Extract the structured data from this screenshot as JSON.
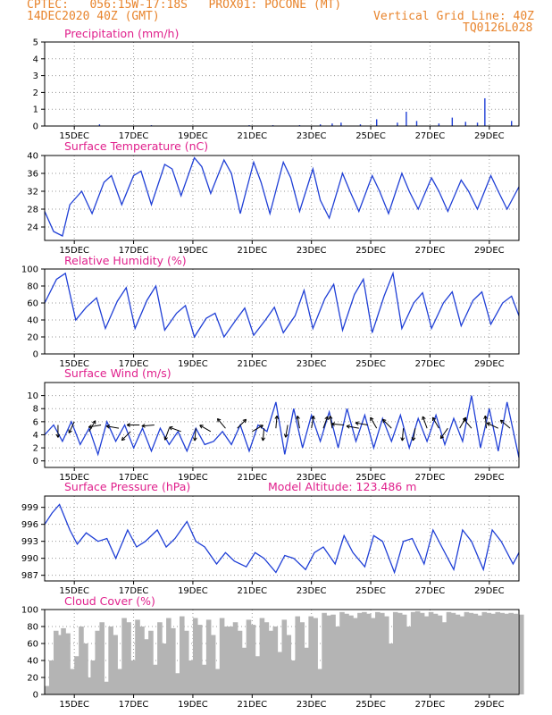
{
  "header": {
    "line1": "CPTEC:   056:15W-17:18S   PROX01: POCONE (MT)",
    "line2": "14DEC2020 40Z (GMT)",
    "right1": "Vertical Grid Line: 40Z",
    "right2": "TQ0126L028"
  },
  "colors": {
    "header": "#e8842c",
    "title": "#e0208c",
    "line": "#1f3fd6",
    "cloud": "#b4b4b4",
    "arrow": "#000000"
  },
  "chart_data": [
    {
      "type": "bar",
      "title": "Precipitation (mm/h)",
      "ylim": [
        0,
        5
      ],
      "yticks": [
        0,
        1,
        2,
        3,
        4,
        5
      ],
      "xticks": [
        "15DEC",
        "17DEC",
        "19DEC",
        "21DEC",
        "23DEC",
        "25DEC",
        "27DEC",
        "29DEC"
      ],
      "grid": true,
      "bars": [
        {
          "day": 15.85,
          "value": 0.1
        },
        {
          "day": 17.6,
          "value": 0.05
        },
        {
          "day": 20.9,
          "value": 0.05
        },
        {
          "day": 21.7,
          "value": 0.05
        },
        {
          "day": 22.6,
          "value": 0.05
        },
        {
          "day": 23.3,
          "value": 0.1
        },
        {
          "day": 23.7,
          "value": 0.15
        },
        {
          "day": 24.0,
          "value": 0.2
        },
        {
          "day": 24.65,
          "value": 0.1
        },
        {
          "day": 25.2,
          "value": 0.4
        },
        {
          "day": 25.9,
          "value": 0.2
        },
        {
          "day": 26.2,
          "value": 0.85
        },
        {
          "day": 26.55,
          "value": 0.3
        },
        {
          "day": 27.3,
          "value": 0.15
        },
        {
          "day": 27.75,
          "value": 0.5
        },
        {
          "day": 28.2,
          "value": 0.25
        },
        {
          "day": 28.6,
          "value": 0.2
        },
        {
          "day": 28.85,
          "value": 1.65
        },
        {
          "day": 29.75,
          "value": 0.3
        }
      ]
    },
    {
      "type": "line",
      "title": "Surface Temperature (nC)",
      "ylim": [
        21,
        40
      ],
      "yticks": [
        24,
        28,
        32,
        36,
        40
      ],
      "xticks": [
        "15DEC",
        "17DEC",
        "19DEC",
        "21DEC",
        "23DEC",
        "25DEC",
        "27DEC",
        "29DEC"
      ],
      "grid": true,
      "x": [
        14.0,
        14.3,
        14.6,
        14.85,
        15.25,
        15.6,
        16.0,
        16.25,
        16.6,
        17.0,
        17.25,
        17.6,
        18.05,
        18.3,
        18.6,
        19.05,
        19.3,
        19.6,
        20.05,
        20.3,
        20.6,
        21.05,
        21.3,
        21.6,
        22.05,
        22.3,
        22.6,
        23.05,
        23.3,
        23.6,
        24.05,
        24.3,
        24.6,
        25.05,
        25.3,
        25.6,
        26.05,
        26.3,
        26.6,
        27.05,
        27.3,
        27.6,
        28.05,
        28.3,
        28.6,
        29.05,
        29.3,
        29.6,
        30.0
      ],
      "values": [
        27.5,
        23,
        22,
        29,
        32,
        27,
        34,
        35.5,
        29,
        35.5,
        36.5,
        29,
        38,
        37,
        31,
        39.5,
        37.5,
        31.5,
        39,
        36,
        27,
        38.5,
        34,
        27,
        38.5,
        35,
        27.5,
        37,
        30,
        26,
        36,
        32,
        27.5,
        35.5,
        32,
        27,
        36,
        32,
        28,
        35,
        32,
        27.5,
        34.5,
        32,
        28,
        35.5,
        32,
        28,
        33
      ]
    },
    {
      "type": "line",
      "title": "Relative Humidity (%)",
      "ylim": [
        0,
        100
      ],
      "yticks": [
        0,
        20,
        40,
        60,
        80,
        100
      ],
      "xticks": [
        "15DEC",
        "17DEC",
        "19DEC",
        "21DEC",
        "23DEC",
        "25DEC",
        "27DEC",
        "29DEC"
      ],
      "grid": true,
      "x": [
        14.0,
        14.4,
        14.7,
        15.05,
        15.4,
        15.75,
        16.05,
        16.45,
        16.75,
        17.05,
        17.45,
        17.75,
        18.05,
        18.45,
        18.75,
        19.05,
        19.45,
        19.75,
        20.05,
        20.45,
        20.75,
        21.05,
        21.45,
        21.75,
        22.05,
        22.45,
        22.75,
        23.05,
        23.45,
        23.75,
        24.05,
        24.45,
        24.75,
        25.05,
        25.45,
        25.75,
        26.05,
        26.45,
        26.75,
        27.05,
        27.45,
        27.75,
        28.05,
        28.45,
        28.75,
        29.05,
        29.45,
        29.75,
        30.0
      ],
      "values": [
        60,
        88,
        95,
        40,
        55,
        66,
        30,
        62,
        78,
        30,
        63,
        80,
        28,
        48,
        57,
        20,
        42,
        48,
        20,
        40,
        54,
        22,
        40,
        55,
        25,
        45,
        75,
        30,
        65,
        82,
        28,
        70,
        88,
        25,
        68,
        95,
        30,
        60,
        72,
        30,
        60,
        73,
        33,
        63,
        73,
        35,
        60,
        68,
        45
      ]
    },
    {
      "type": "line",
      "title": "Surface Wind (m/s)",
      "ylim": [
        -1,
        12
      ],
      "yticks": [
        0,
        2,
        4,
        6,
        8,
        10
      ],
      "xticks": [
        "15DEC",
        "17DEC",
        "19DEC",
        "21DEC",
        "23DEC",
        "25DEC",
        "27DEC",
        "29DEC"
      ],
      "grid": true,
      "x": [
        14.0,
        14.3,
        14.6,
        14.9,
        15.2,
        15.5,
        15.8,
        16.1,
        16.4,
        16.7,
        17.0,
        17.3,
        17.6,
        17.9,
        18.2,
        18.5,
        18.8,
        19.1,
        19.4,
        19.7,
        20.0,
        20.3,
        20.6,
        20.9,
        21.2,
        21.5,
        21.8,
        22.1,
        22.4,
        22.7,
        23.0,
        23.3,
        23.6,
        23.9,
        24.2,
        24.5,
        24.8,
        25.1,
        25.4,
        25.7,
        26.0,
        26.3,
        26.6,
        26.9,
        27.2,
        27.5,
        27.8,
        28.1,
        28.4,
        28.7,
        29.0,
        29.3,
        29.6,
        30.0
      ],
      "values": [
        4,
        5.5,
        3,
        6,
        2.5,
        5,
        1,
        6,
        3,
        5.5,
        2,
        5,
        1.5,
        5,
        2.5,
        4.5,
        1.5,
        5,
        2.5,
        3,
        4.5,
        2.5,
        5.5,
        1.5,
        5.5,
        4.5,
        9,
        1,
        8,
        2,
        7,
        3,
        7.5,
        2,
        8,
        3,
        7,
        2,
        6.5,
        3,
        7,
        2,
        6.5,
        3,
        7,
        2.5,
        6.5,
        3,
        10,
        2,
        8,
        1.5,
        9,
        0.5
      ],
      "arrows": [
        {
          "day": 14.45,
          "speed": 5.5,
          "angle": 90
        },
        {
          "day": 15.0,
          "speed": 6,
          "angle": 115
        },
        {
          "day": 15.5,
          "speed": 4.5,
          "angle": 300
        },
        {
          "day": 15.9,
          "speed": 5.5,
          "angle": 170
        },
        {
          "day": 16.5,
          "speed": 5,
          "angle": 190
        },
        {
          "day": 16.9,
          "speed": 4.5,
          "angle": 135
        },
        {
          "day": 17.2,
          "speed": 5.5,
          "angle": 180
        },
        {
          "day": 17.7,
          "speed": 5.5,
          "angle": 175
        },
        {
          "day": 18.2,
          "speed": 5,
          "angle": 110
        },
        {
          "day": 18.6,
          "speed": 4.5,
          "angle": 200
        },
        {
          "day": 19.1,
          "speed": 5,
          "angle": 95
        },
        {
          "day": 19.6,
          "speed": 4.5,
          "angle": 210
        },
        {
          "day": 20.1,
          "speed": 5,
          "angle": 230
        },
        {
          "day": 20.5,
          "speed": 5,
          "angle": 315
        },
        {
          "day": 21.0,
          "speed": 4.5,
          "angle": 330
        },
        {
          "day": 21.4,
          "speed": 5,
          "angle": 95
        },
        {
          "day": 21.8,
          "speed": 5,
          "angle": 275
        },
        {
          "day": 22.2,
          "speed": 5.5,
          "angle": 100
        },
        {
          "day": 22.6,
          "speed": 5,
          "angle": 260
        },
        {
          "day": 23.0,
          "speed": 5,
          "angle": 280
        },
        {
          "day": 23.4,
          "speed": 5,
          "angle": 290
        },
        {
          "day": 23.7,
          "speed": 5,
          "angle": 260
        },
        {
          "day": 24.1,
          "speed": 5.5,
          "angle": 185
        },
        {
          "day": 24.6,
          "speed": 5,
          "angle": 190
        },
        {
          "day": 24.9,
          "speed": 5.5,
          "angle": 190
        },
        {
          "day": 25.2,
          "speed": 5,
          "angle": 240
        },
        {
          "day": 25.7,
          "speed": 5,
          "angle": 225
        },
        {
          "day": 26.1,
          "speed": 5,
          "angle": 95
        },
        {
          "day": 26.5,
          "speed": 5,
          "angle": 100
        },
        {
          "day": 26.9,
          "speed": 5,
          "angle": 250
        },
        {
          "day": 27.3,
          "speed": 5,
          "angle": 240
        },
        {
          "day": 27.6,
          "speed": 5,
          "angle": 125
        },
        {
          "day": 28.0,
          "speed": 5,
          "angle": 300
        },
        {
          "day": 28.4,
          "speed": 5,
          "angle": 230
        },
        {
          "day": 28.9,
          "speed": 5,
          "angle": 265
        },
        {
          "day": 29.3,
          "speed": 5,
          "angle": 205
        },
        {
          "day": 29.7,
          "speed": 5,
          "angle": 220
        }
      ]
    },
    {
      "type": "line",
      "title": "Surface Pressure (hPa)",
      "subtitle": "Model Altitude: 123.486 m",
      "ylim": [
        986,
        1001
      ],
      "yticks": [
        987,
        990,
        993,
        996,
        999
      ],
      "xticks": [
        "15DEC",
        "17DEC",
        "19DEC",
        "21DEC",
        "23DEC",
        "25DEC",
        "27DEC",
        "29DEC"
      ],
      "grid": true,
      "x": [
        14.0,
        14.25,
        14.5,
        14.85,
        15.1,
        15.4,
        15.8,
        16.1,
        16.4,
        16.8,
        17.1,
        17.4,
        17.8,
        18.1,
        18.4,
        18.8,
        19.1,
        19.4,
        19.8,
        20.1,
        20.4,
        20.8,
        21.1,
        21.4,
        21.8,
        22.1,
        22.4,
        22.8,
        23.1,
        23.4,
        23.8,
        24.1,
        24.4,
        24.8,
        25.1,
        25.4,
        25.8,
        26.1,
        26.4,
        26.8,
        27.1,
        27.4,
        27.8,
        28.1,
        28.4,
        28.8,
        29.1,
        29.4,
        29.8,
        30.0
      ],
      "values": [
        996,
        998,
        999.5,
        995,
        992.5,
        994.5,
        993,
        993.5,
        990,
        995,
        992,
        993,
        995,
        992,
        993.5,
        996.5,
        993,
        992,
        989,
        991,
        989.5,
        988.5,
        991,
        990,
        987.5,
        990.5,
        990,
        988,
        991,
        992,
        989,
        994,
        991,
        988.5,
        994,
        993,
        987.5,
        993,
        993.5,
        989,
        995,
        992,
        988,
        995,
        993,
        988,
        995,
        993,
        989,
        991
      ]
    },
    {
      "type": "area",
      "title": "Cloud Cover (%)",
      "ylim": [
        0,
        100
      ],
      "yticks": [
        0,
        20,
        40,
        60,
        80,
        100
      ],
      "xticks": [
        "15DEC",
        "17DEC",
        "19DEC",
        "21DEC",
        "23DEC",
        "25DEC",
        "27DEC",
        "29DEC"
      ],
      "grid": true,
      "x": [
        14.0,
        14.15,
        14.3,
        14.45,
        14.55,
        14.7,
        14.85,
        15.0,
        15.15,
        15.3,
        15.45,
        15.55,
        15.7,
        15.85,
        16.0,
        16.15,
        16.3,
        16.45,
        16.6,
        16.75,
        16.9,
        17.05,
        17.2,
        17.35,
        17.5,
        17.65,
        17.8,
        17.95,
        18.1,
        18.25,
        18.4,
        18.55,
        18.7,
        18.85,
        19.0,
        19.15,
        19.3,
        19.45,
        19.6,
        19.75,
        19.9,
        20.05,
        20.2,
        20.35,
        20.5,
        20.65,
        20.8,
        20.95,
        21.1,
        21.25,
        21.4,
        21.55,
        21.7,
        21.85,
        22.0,
        22.15,
        22.3,
        22.45,
        22.6,
        22.75,
        22.9,
        23.05,
        23.2,
        23.35,
        23.5,
        23.65,
        23.8,
        23.95,
        24.1,
        24.25,
        24.4,
        24.55,
        24.7,
        24.85,
        25.0,
        25.15,
        25.3,
        25.45,
        25.6,
        25.75,
        25.9,
        26.05,
        26.2,
        26.35,
        26.5,
        26.65,
        26.8,
        26.95,
        27.1,
        27.25,
        27.4,
        27.55,
        27.7,
        27.85,
        28.0,
        28.15,
        28.3,
        28.45,
        28.6,
        28.75,
        28.9,
        29.05,
        29.2,
        29.35,
        29.5,
        29.65,
        29.8,
        30.0
      ],
      "values": [
        10,
        40,
        75,
        70,
        78,
        72,
        30,
        45,
        80,
        60,
        20,
        40,
        75,
        85,
        15,
        80,
        70,
        30,
        90,
        85,
        40,
        88,
        80,
        65,
        75,
        35,
        85,
        60,
        90,
        78,
        25,
        92,
        75,
        40,
        90,
        82,
        35,
        88,
        70,
        30,
        90,
        80,
        80,
        85,
        75,
        55,
        88,
        82,
        45,
        90,
        85,
        75,
        80,
        50,
        88,
        70,
        40,
        92,
        85,
        55,
        92,
        90,
        30,
        96,
        93,
        94,
        80,
        97,
        95,
        93,
        90,
        96,
        97,
        95,
        90,
        97,
        96,
        92,
        60,
        97,
        96,
        94,
        80,
        97,
        98,
        96,
        92,
        97,
        95,
        93,
        85,
        97,
        96,
        94,
        92,
        97,
        96,
        95,
        93,
        97,
        96,
        95,
        97,
        96,
        95,
        96,
        95,
        94
      ]
    }
  ]
}
